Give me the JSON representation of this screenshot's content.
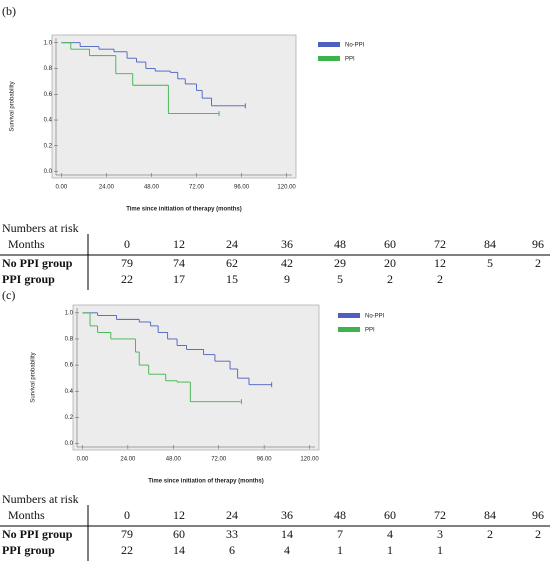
{
  "chart_data": [
    {
      "type": "step",
      "panel_label": "(b)",
      "x_label": "Time since initiation of therapy (months)",
      "y_label": "Survival probability",
      "xlim": [
        -5,
        125
      ],
      "ylim": [
        -0.05,
        1.06
      ],
      "xticks": [
        {
          "value": 0,
          "label": "0.00"
        },
        {
          "value": 24,
          "label": "24.00"
        },
        {
          "value": 48,
          "label": "48.00"
        },
        {
          "value": 72,
          "label": "72.00"
        },
        {
          "value": 96,
          "label": "96.00"
        },
        {
          "value": 120,
          "label": "120.00"
        }
      ],
      "yticks": [
        {
          "value": 0,
          "label": "0.0"
        },
        0.2,
        0.4,
        0.6,
        0.8,
        {
          "value": 1,
          "label": "1.0"
        }
      ],
      "legend": "upper right",
      "series": [
        {
          "name": "No-PPI",
          "color": "#4d5fc0",
          "x": [
            0,
            10,
            20,
            28,
            35,
            40,
            45,
            50,
            58,
            62,
            66,
            72,
            75,
            80,
            98
          ],
          "values": [
            1.0,
            0.97,
            0.95,
            0.93,
            0.88,
            0.85,
            0.8,
            0.78,
            0.77,
            0.72,
            0.68,
            0.63,
            0.57,
            0.51,
            0.51
          ]
        },
        {
          "name": "PPI",
          "color": "#3cb44b",
          "x": [
            0,
            5,
            15,
            29,
            38,
            57,
            84
          ],
          "values": [
            1.0,
            0.95,
            0.9,
            0.76,
            0.67,
            0.45,
            0.45
          ]
        }
      ]
    },
    {
      "type": "step",
      "panel_label": "(c)",
      "x_label": "Time since initiation of therapy (months)",
      "y_label": "Survival probability",
      "xlim": [
        -5,
        125
      ],
      "ylim": [
        -0.05,
        1.06
      ],
      "xticks": [
        {
          "value": 0,
          "label": "0.00"
        },
        {
          "value": 24,
          "label": "24.00"
        },
        {
          "value": 48,
          "label": "48.00"
        },
        {
          "value": 72,
          "label": "72.00"
        },
        {
          "value": 96,
          "label": "96.00"
        },
        {
          "value": 120,
          "label": "120.00"
        }
      ],
      "yticks": [
        {
          "value": 0,
          "label": "0.0"
        },
        0.2,
        0.4,
        0.6,
        0.8,
        {
          "value": 1,
          "label": "1.0"
        }
      ],
      "legend": "upper right",
      "series": [
        {
          "name": "No-PPI",
          "color": "#4d5fc0",
          "x": [
            0,
            8,
            18,
            30,
            36,
            40,
            45,
            50,
            55,
            64,
            70,
            78,
            82,
            88,
            100
          ],
          "values": [
            1.0,
            0.98,
            0.95,
            0.93,
            0.9,
            0.85,
            0.8,
            0.75,
            0.72,
            0.68,
            0.63,
            0.57,
            0.5,
            0.45,
            0.45
          ]
        },
        {
          "name": "PPI",
          "color": "#3cb44b",
          "x": [
            0,
            4,
            8,
            15,
            28,
            30,
            35,
            44,
            50,
            57,
            84
          ],
          "values": [
            1.0,
            0.9,
            0.85,
            0.8,
            0.7,
            0.6,
            0.53,
            0.48,
            0.47,
            0.32,
            0.32
          ]
        }
      ]
    }
  ],
  "risk_tables": [
    {
      "title": "Numbers at risk",
      "header": "Months",
      "columns": [
        0,
        12,
        24,
        36,
        48,
        60,
        72,
        84,
        96
      ],
      "rows": [
        {
          "name": "No PPI group",
          "values": [
            79,
            74,
            62,
            42,
            29,
            20,
            12,
            5,
            2
          ]
        },
        {
          "name": "PPI group",
          "values": [
            22,
            17,
            15,
            9,
            5,
            2,
            2
          ]
        }
      ]
    },
    {
      "title": "Numbers at risk",
      "header": "Months",
      "columns": [
        0,
        12,
        24,
        36,
        48,
        60,
        72,
        84,
        96
      ],
      "rows": [
        {
          "name": "No PPI group",
          "values": [
            79,
            60,
            33,
            14,
            7,
            4,
            3,
            2,
            2
          ]
        },
        {
          "name": "PPI group",
          "values": [
            22,
            14,
            6,
            4,
            1,
            1,
            1
          ]
        }
      ]
    }
  ]
}
